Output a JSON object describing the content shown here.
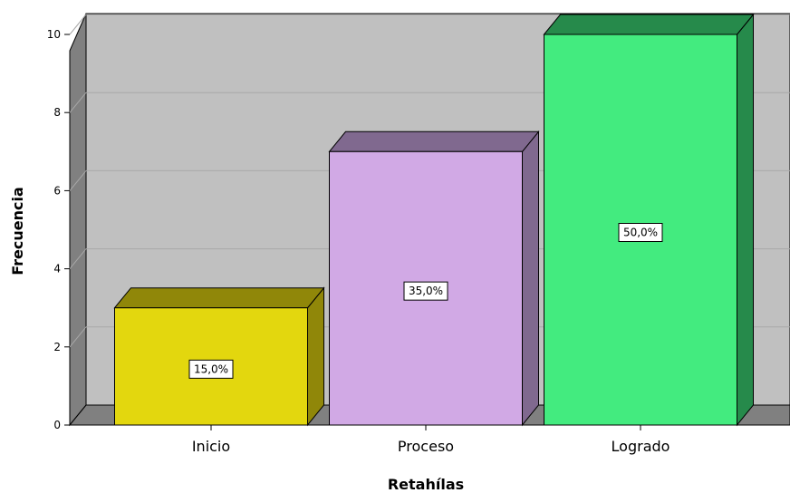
{
  "chart_data": {
    "type": "bar",
    "style": "3d",
    "categories": [
      "Inicio",
      "Proceso",
      "Logrado"
    ],
    "values": [
      3,
      7,
      10
    ],
    "data_labels": [
      "15,0%",
      "35,0%",
      "50,0%"
    ],
    "xlabel": "Retahílas",
    "ylabel": "Frecuencia",
    "ylim": [
      0,
      10
    ],
    "yticks": [
      0,
      2,
      4,
      6,
      8,
      10
    ],
    "grid": true,
    "colors": {
      "front": [
        "#e3d70e",
        "#d1a9e5",
        "#43eb7f"
      ],
      "top": [
        "#908709",
        "#80698f",
        "#268a4b"
      ],
      "side": [
        "#908709",
        "#80698f",
        "#268a4b"
      ],
      "plot_back": "#c0c0c0",
      "plot_wall": "#808080"
    }
  }
}
